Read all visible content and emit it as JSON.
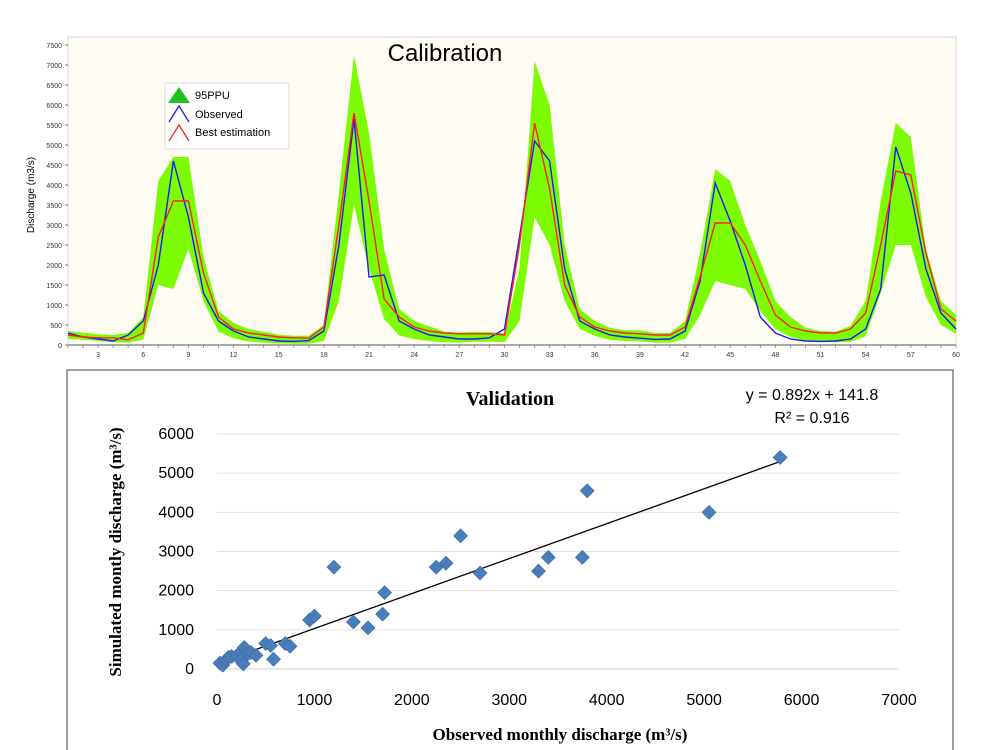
{
  "chart_data": [
    {
      "type": "line",
      "title": "Calibration",
      "xlabel": "",
      "ylabel": "Discharge (m3/s)",
      "xlim": [
        1,
        60
      ],
      "ylim": [
        0,
        7500
      ],
      "xticks": [
        3,
        6,
        9,
        12,
        15,
        18,
        21,
        24,
        27,
        30,
        33,
        36,
        39,
        42,
        45,
        48,
        51,
        54,
        57,
        60
      ],
      "yticks": [
        0,
        500,
        1000,
        1500,
        2000,
        2500,
        3000,
        3500,
        4000,
        4500,
        5000,
        5500,
        6000,
        6500,
        7000,
        7500
      ],
      "grid": false,
      "legend": "top-left",
      "legend_entries": [
        "95PPU",
        "Observed",
        "Best estimation"
      ],
      "x": [
        1,
        2,
        3,
        4,
        5,
        6,
        7,
        8,
        9,
        10,
        11,
        12,
        13,
        14,
        15,
        16,
        17,
        18,
        19,
        20,
        21,
        22,
        23,
        24,
        25,
        26,
        27,
        28,
        29,
        30,
        31,
        32,
        33,
        34,
        35,
        36,
        37,
        38,
        39,
        40,
        41,
        42,
        43,
        44,
        45,
        46,
        47,
        48,
        49,
        50,
        51,
        52,
        53,
        54,
        55,
        56,
        57,
        58,
        59,
        60
      ],
      "band": {
        "name": "95PPU",
        "color": "#7cfc00",
        "upper": [
          350,
          310,
          270,
          250,
          300,
          700,
          4100,
          4700,
          4700,
          2200,
          850,
          550,
          400,
          330,
          260,
          230,
          230,
          500,
          3800,
          7250,
          5300,
          2400,
          900,
          600,
          470,
          330,
          310,
          330,
          320,
          300,
          1900,
          7100,
          6000,
          2500,
          900,
          600,
          430,
          370,
          370,
          300,
          300,
          600,
          2300,
          4400,
          4100,
          3000,
          2100,
          1100,
          700,
          430,
          350,
          330,
          480,
          1100,
          3600,
          5550,
          5200,
          2400,
          1100,
          750
        ],
        "lower": [
          150,
          130,
          100,
          70,
          60,
          130,
          1500,
          1400,
          2400,
          1100,
          330,
          170,
          90,
          60,
          40,
          30,
          30,
          100,
          1100,
          3500,
          1900,
          650,
          240,
          150,
          100,
          70,
          60,
          80,
          80,
          70,
          600,
          3200,
          2500,
          1100,
          400,
          230,
          130,
          100,
          90,
          60,
          60,
          150,
          750,
          1600,
          1500,
          1400,
          850,
          400,
          200,
          110,
          80,
          70,
          80,
          220,
          1300,
          2500,
          2500,
          1200,
          500,
          280
        ]
      },
      "series": [
        {
          "name": "Observed",
          "color": "#1a1aff",
          "values": [
            300,
            200,
            150,
            100,
            250,
            600,
            2000,
            4600,
            3200,
            1300,
            600,
            350,
            200,
            150,
            100,
            90,
            110,
            350,
            2500,
            5650,
            1700,
            1750,
            600,
            400,
            250,
            200,
            150,
            150,
            180,
            400,
            2700,
            5100,
            4600,
            1900,
            600,
            400,
            250,
            200,
            170,
            140,
            150,
            350,
            1600,
            4050,
            3100,
            2000,
            700,
            300,
            150,
            100,
            90,
            100,
            150,
            400,
            1400,
            4950,
            3800,
            1900,
            800,
            400
          ]
        },
        {
          "name": "Best estimation",
          "color": "#ff2020",
          "values": [
            250,
            200,
            180,
            180,
            130,
            300,
            2700,
            3600,
            3600,
            1800,
            700,
            400,
            300,
            250,
            200,
            180,
            170,
            450,
            3000,
            5800,
            3600,
            1150,
            700,
            450,
            350,
            300,
            280,
            280,
            280,
            250,
            2500,
            5550,
            3900,
            1500,
            700,
            450,
            350,
            300,
            280,
            250,
            250,
            450,
            1700,
            3050,
            3050,
            2500,
            1600,
            750,
            450,
            350,
            300,
            300,
            400,
            800,
            2500,
            4350,
            4250,
            2300,
            900,
            600
          ]
        }
      ]
    },
    {
      "type": "scatter",
      "title": "Validation",
      "xlabel": "Observed monthly discharge (m³/s)",
      "ylabel": "Simulated montly discharge (m³/s)",
      "xlim": [
        0,
        7000
      ],
      "ylim": [
        0,
        6000
      ],
      "xticks": [
        0,
        1000,
        2000,
        3000,
        4000,
        5000,
        6000,
        7000
      ],
      "yticks": [
        0,
        1000,
        2000,
        3000,
        4000,
        5000,
        6000
      ],
      "grid": true,
      "marker_color": "#4a7ebb",
      "equation": "y = 0.892x + 141.8",
      "r_squared": "R² = 0.916",
      "trendline": {
        "slope": 0.892,
        "intercept": 141.8,
        "x_range": [
          20,
          5780
        ]
      },
      "points": [
        [
          30,
          150
        ],
        [
          60,
          100
        ],
        [
          80,
          200
        ],
        [
          100,
          250
        ],
        [
          120,
          300
        ],
        [
          150,
          320
        ],
        [
          200,
          330
        ],
        [
          250,
          450
        ],
        [
          260,
          250
        ],
        [
          270,
          130
        ],
        [
          280,
          550
        ],
        [
          300,
          500
        ],
        [
          320,
          400
        ],
        [
          350,
          420
        ],
        [
          400,
          350
        ],
        [
          500,
          650
        ],
        [
          550,
          600
        ],
        [
          580,
          250
        ],
        [
          700,
          650
        ],
        [
          750,
          580
        ],
        [
          950,
          1250
        ],
        [
          1000,
          1350
        ],
        [
          1200,
          2600
        ],
        [
          1400,
          1200
        ],
        [
          1550,
          1050
        ],
        [
          1700,
          1400
        ],
        [
          1720,
          1950
        ],
        [
          2250,
          2600
        ],
        [
          2350,
          2700
        ],
        [
          2500,
          3400
        ],
        [
          2700,
          2450
        ],
        [
          3300,
          2500
        ],
        [
          3400,
          2850
        ],
        [
          3750,
          2850
        ],
        [
          3800,
          4550
        ],
        [
          5050,
          4000
        ],
        [
          5780,
          5400
        ]
      ]
    }
  ]
}
